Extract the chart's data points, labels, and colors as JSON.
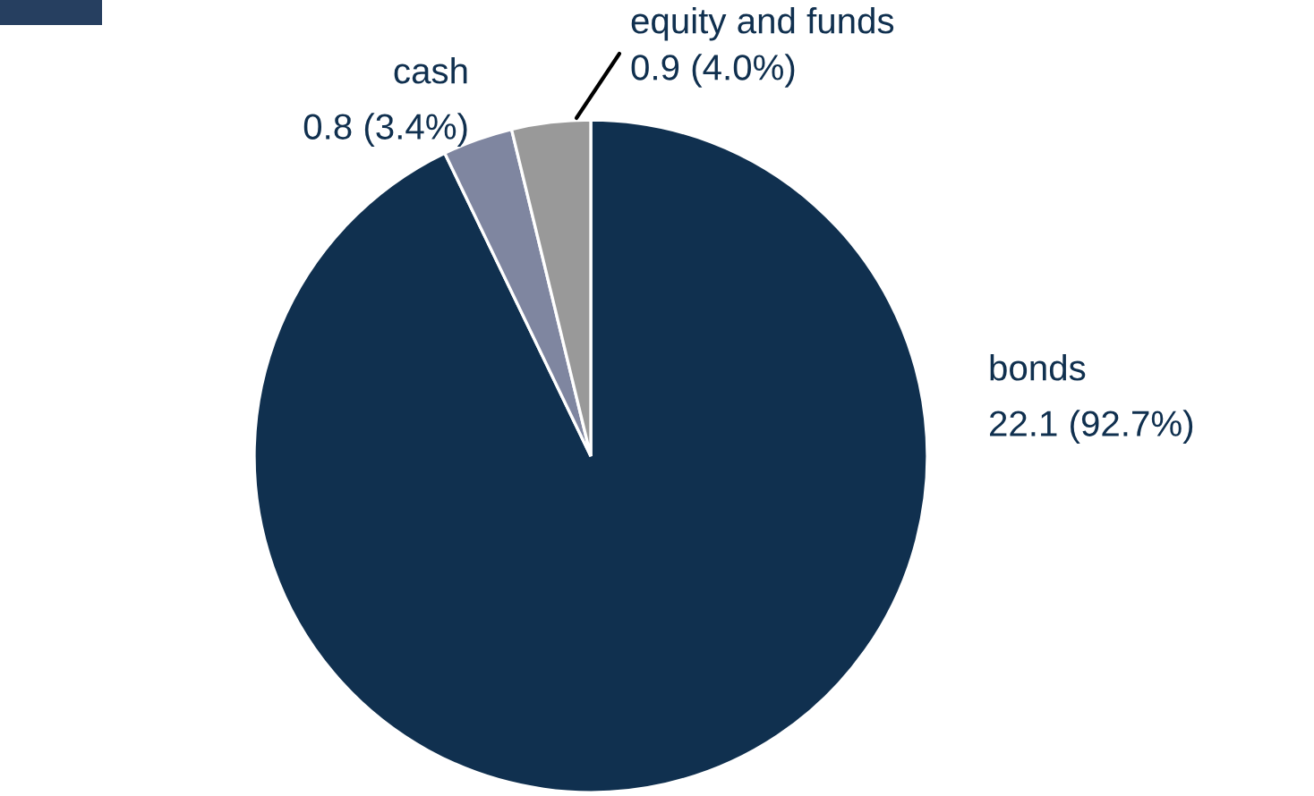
{
  "chart_data": {
    "type": "pie",
    "categories": [
      "bonds",
      "cash",
      "equity and funds"
    ],
    "values": [
      22.1,
      0.8,
      0.9
    ],
    "value_labels": [
      "22.1 (92.7%)",
      "0.8 (3.4%)",
      "0.9 (4.0%)"
    ],
    "colors": [
      "#10304f",
      "#7f86a0",
      "#999999"
    ],
    "legend": false
  }
}
